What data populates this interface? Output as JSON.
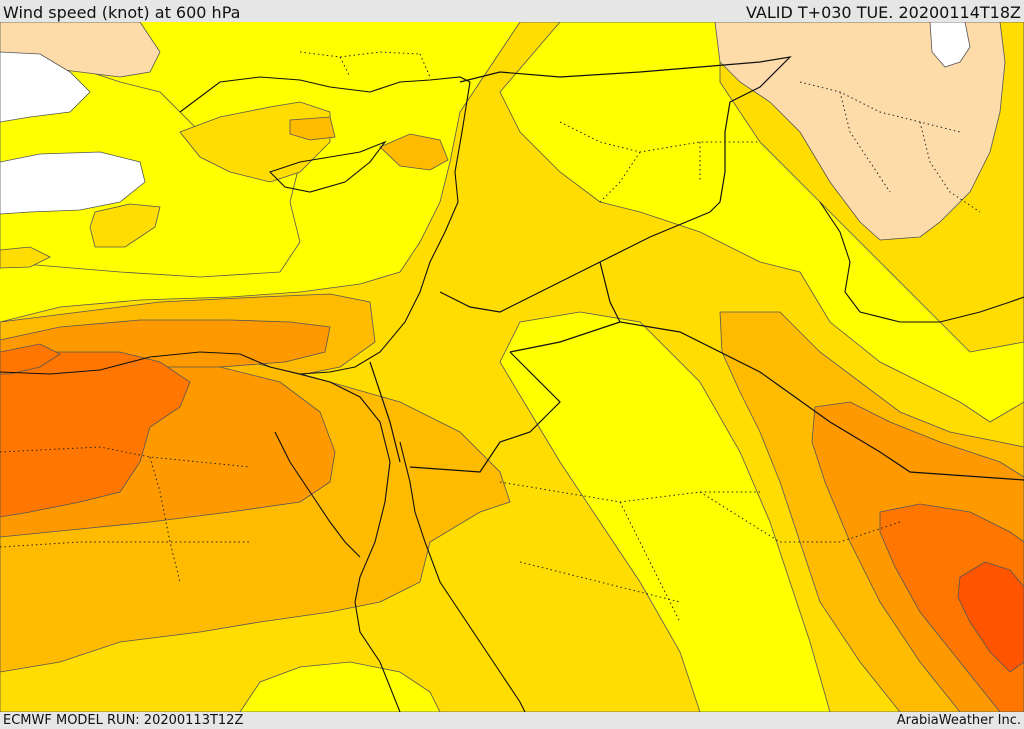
{
  "header": {
    "title": "Wind speed (knot) at 600 hPa",
    "valid": "VALID T+030 TUE. 20200114T18Z"
  },
  "footer": {
    "model_run": "ECMWF MODEL RUN: 20200113T12Z",
    "credit": "ArabiaWeather Inc."
  },
  "colors": {
    "band_white": "#ffffff",
    "band_peach": "#fddcaa",
    "band_yellow": "#ffff00",
    "band_gold": "#ffdd00",
    "band_amber": "#ffbb00",
    "band_orange": "#ff9900",
    "band_dark_orange": "#ff7700",
    "band_red_orange": "#ff5500"
  }
}
